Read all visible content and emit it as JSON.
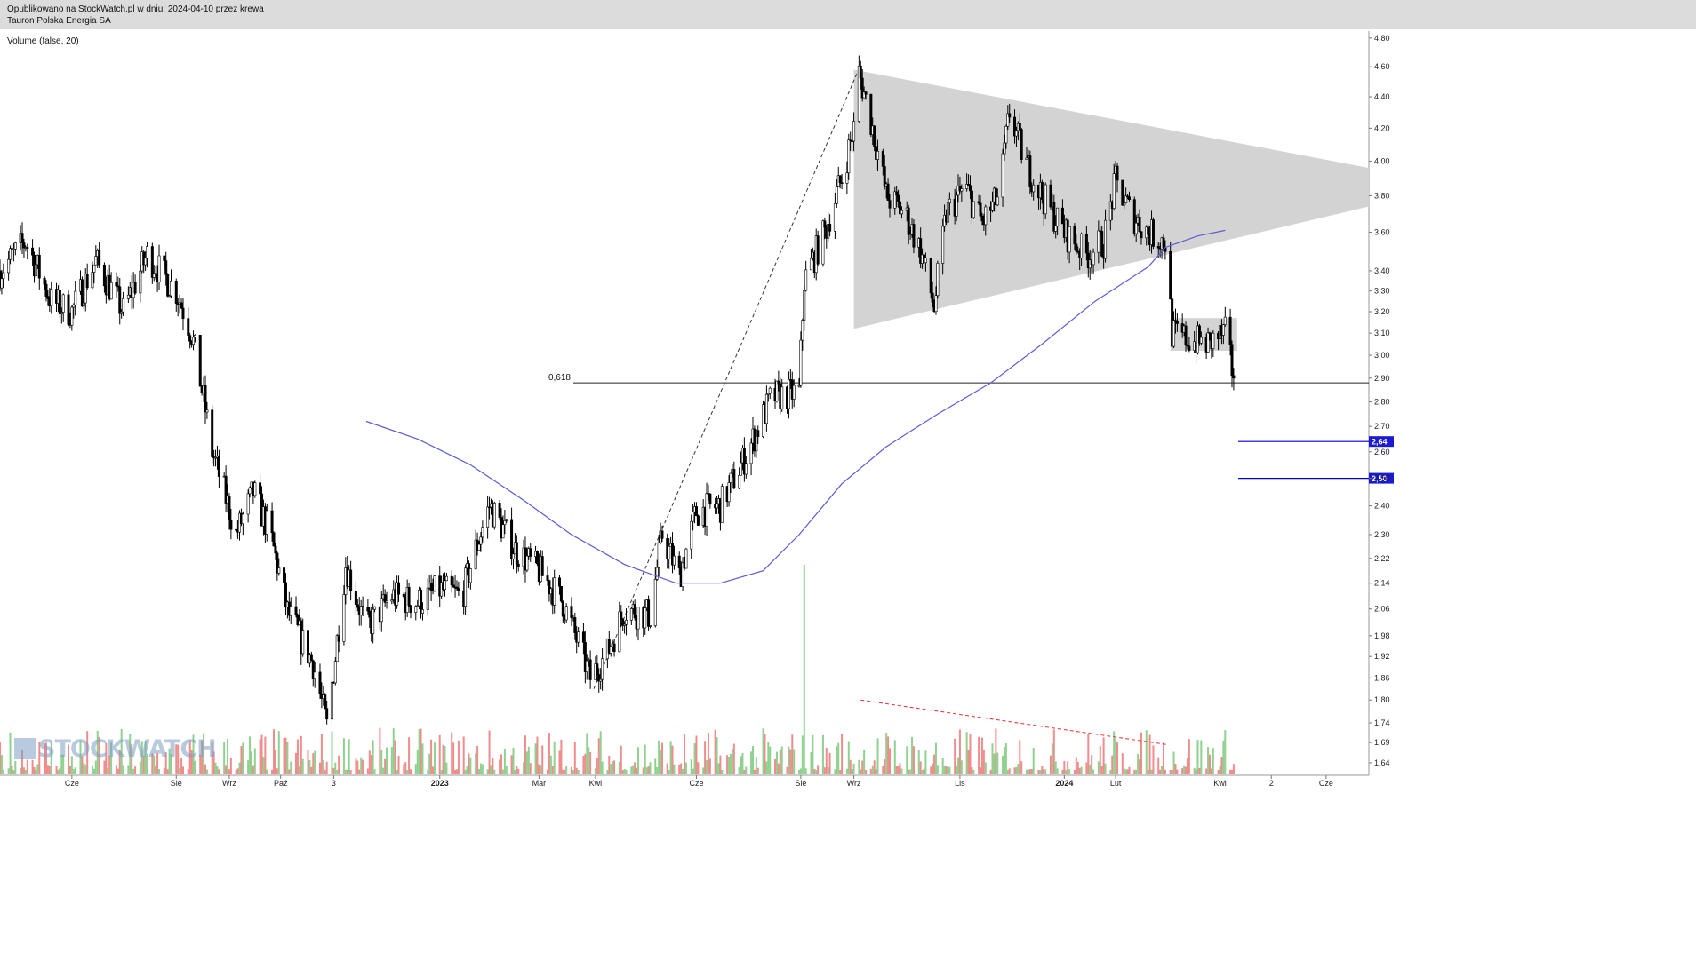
{
  "header": {
    "line1": "Opublikowano na StockWatch.pl w dniu: 2024-04-10 przez krewa",
    "line2": "Tauron Polska Energia SA"
  },
  "indicator_label": "Volume (false, 20)",
  "watermark": "STOCKWATCH",
  "colors": {
    "candle": "#000000",
    "ma": "#5a5ad8",
    "vol_up": "#8fd18f",
    "vol_down": "#f08c8c",
    "triangle": "#d3d3d3",
    "level": "#0000cc",
    "level_label_bg": "#1a1ad0",
    "trendline": "#555555",
    "vol_trend": "#e03030"
  },
  "chart_data": {
    "type": "candlestick",
    "title": "Tauron Polska Energia SA",
    "y_scale": "log",
    "ylim": [
      1.61,
      4.85
    ],
    "y_ticks": [
      "4,80",
      "4,60",
      "4,40",
      "4,20",
      "4,00",
      "3,80",
      "3,60",
      "3,40",
      "3,30",
      "3,20",
      "3,10",
      "3,00",
      "2,90",
      "2,80",
      "2,70",
      "2,60",
      "2,50",
      "2,40",
      "2,30",
      "2,22",
      "2,14",
      "2,06",
      "1,98",
      "1,92",
      "1,86",
      "1,80",
      "1,74",
      "1,69",
      "1,64"
    ],
    "x_ticks": [
      {
        "label": "Cze",
        "bold": false,
        "date": "2022-06-01"
      },
      {
        "label": "Sie",
        "bold": false,
        "date": "2022-08-01"
      },
      {
        "label": "Wrz",
        "bold": false,
        "date": "2022-09-01"
      },
      {
        "label": "Paź",
        "bold": false,
        "date": "2022-10-01"
      },
      {
        "label": "3",
        "bold": false,
        "date": "2022-11-01"
      },
      {
        "label": "2023",
        "bold": true,
        "date": "2023-01-02"
      },
      {
        "label": "Mar",
        "bold": false,
        "date": "2023-03-01"
      },
      {
        "label": "Kwi",
        "bold": false,
        "date": "2023-04-03"
      },
      {
        "label": "Cze",
        "bold": false,
        "date": "2023-06-01"
      },
      {
        "label": "Sie",
        "bold": false,
        "date": "2023-08-01"
      },
      {
        "label": "Wrz",
        "bold": false,
        "date": "2023-09-01"
      },
      {
        "label": "Lis",
        "bold": false,
        "date": "2023-11-02"
      },
      {
        "label": "2024",
        "bold": true,
        "date": "2024-01-02"
      },
      {
        "label": "Lut",
        "bold": false,
        "date": "2024-02-01"
      },
      {
        "label": "Kwi",
        "bold": false,
        "date": "2024-04-02"
      },
      {
        "label": "2",
        "bold": false,
        "date": "2024-05-02"
      },
      {
        "label": "Cze",
        "bold": false,
        "date": "2024-06-03"
      }
    ],
    "price_path": [
      [
        "2022-04-20",
        3.4
      ],
      [
        "2022-05-05",
        3.55
      ],
      [
        "2022-05-20",
        3.25
      ],
      [
        "2022-06-01",
        3.2
      ],
      [
        "2022-06-15",
        3.45
      ],
      [
        "2022-07-01",
        3.2
      ],
      [
        "2022-07-15",
        3.48
      ],
      [
        "2022-08-01",
        3.3
      ],
      [
        "2022-08-10",
        3.1
      ],
      [
        "2022-08-22",
        2.6
      ],
      [
        "2022-09-05",
        2.3
      ],
      [
        "2022-09-15",
        2.45
      ],
      [
        "2022-09-25",
        2.3
      ],
      [
        "2022-10-05",
        2.05
      ],
      [
        "2022-10-20",
        1.9
      ],
      [
        "2022-10-28",
        1.73
      ],
      [
        "2022-11-02",
        1.92
      ],
      [
        "2022-11-08",
        2.2
      ],
      [
        "2022-11-20",
        2.0
      ],
      [
        "2022-12-05",
        2.1
      ],
      [
        "2022-12-20",
        2.08
      ],
      [
        "2023-01-02",
        2.12
      ],
      [
        "2023-01-15",
        2.1
      ],
      [
        "2023-01-31",
        2.4
      ],
      [
        "2023-02-15",
        2.25
      ],
      [
        "2023-03-01",
        2.18
      ],
      [
        "2023-03-15",
        2.08
      ],
      [
        "2023-03-31",
        1.86
      ],
      [
        "2023-04-10",
        1.93
      ],
      [
        "2023-04-20",
        2.06
      ],
      [
        "2023-05-05",
        2.04
      ],
      [
        "2023-05-12",
        2.3
      ],
      [
        "2023-05-22",
        2.16
      ],
      [
        "2023-06-01",
        2.38
      ],
      [
        "2023-06-15",
        2.4
      ],
      [
        "2023-07-01",
        2.6
      ],
      [
        "2023-07-15",
        2.82
      ],
      [
        "2023-07-31",
        2.84
      ],
      [
        "2023-08-03",
        3.35
      ],
      [
        "2023-08-15",
        3.6
      ],
      [
        "2023-08-25",
        3.9
      ],
      [
        "2023-09-01",
        4.2
      ],
      [
        "2023-09-04",
        4.56
      ],
      [
        "2023-09-12",
        4.2
      ],
      [
        "2023-09-20",
        3.8
      ],
      [
        "2023-10-01",
        3.7
      ],
      [
        "2023-10-10",
        3.5
      ],
      [
        "2023-10-18",
        3.22
      ],
      [
        "2023-10-25",
        3.7
      ],
      [
        "2023-11-05",
        3.85
      ],
      [
        "2023-11-15",
        3.65
      ],
      [
        "2023-11-25",
        3.8
      ],
      [
        "2023-12-01",
        4.3
      ],
      [
        "2023-12-10",
        4.0
      ],
      [
        "2023-12-20",
        3.8
      ],
      [
        "2024-01-02",
        3.6
      ],
      [
        "2024-01-15",
        3.48
      ],
      [
        "2024-01-25",
        3.55
      ],
      [
        "2024-02-01",
        3.88
      ],
      [
        "2024-02-10",
        3.7
      ],
      [
        "2024-02-20",
        3.6
      ],
      [
        "2024-03-01",
        3.55
      ],
      [
        "2024-03-05",
        3.1
      ],
      [
        "2024-03-15",
        3.07
      ],
      [
        "2024-03-25",
        3.05
      ],
      [
        "2024-04-05",
        3.1
      ],
      [
        "2024-04-10",
        2.9
      ]
    ],
    "ma_line": [
      [
        "2022-11-20",
        2.72
      ],
      [
        "2022-12-20",
        2.65
      ],
      [
        "2023-01-20",
        2.55
      ],
      [
        "2023-02-20",
        2.42
      ],
      [
        "2023-03-20",
        2.3
      ],
      [
        "2023-04-20",
        2.2
      ],
      [
        "2023-05-20",
        2.14
      ],
      [
        "2023-06-15",
        2.14
      ],
      [
        "2023-07-10",
        2.18
      ],
      [
        "2023-07-31",
        2.3
      ],
      [
        "2023-08-25",
        2.48
      ],
      [
        "2023-09-20",
        2.62
      ],
      [
        "2023-10-20",
        2.75
      ],
      [
        "2023-11-20",
        2.88
      ],
      [
        "2023-12-20",
        3.05
      ],
      [
        "2024-01-20",
        3.25
      ],
      [
        "2024-02-20",
        3.42
      ],
      [
        "2024-03-01",
        3.52
      ],
      [
        "2024-03-20",
        3.58
      ],
      [
        "2024-04-05",
        3.61
      ]
    ],
    "volume_spike_date": "2023-08-03",
    "fib_level": {
      "label": "0,618",
      "value": 2.88
    },
    "levels": [
      {
        "label": "2,64",
        "value": 2.64
      },
      {
        "label": "2,50",
        "value": 2.5
      }
    ],
    "triangle": [
      [
        "2023-09-01",
        4.58
      ],
      [
        "2024-06-28",
        3.96
      ],
      [
        "2024-06-28",
        3.74
      ],
      [
        "2023-09-01",
        3.12
      ]
    ],
    "consolidation_box": {
      "from": "2024-03-04",
      "to": "2024-04-12",
      "high": 3.17,
      "low": 3.02
    },
    "trendline": [
      [
        "2023-04-02",
        1.83
      ],
      [
        "2023-09-03",
        4.56
      ]
    ],
    "volume_trendline": [
      [
        "2023-09-05",
        1.8
      ],
      [
        "2024-03-02",
        1.685
      ]
    ]
  }
}
